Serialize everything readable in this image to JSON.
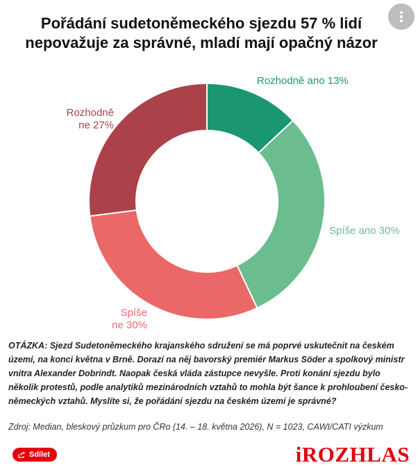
{
  "title": "Pořádání sudetoněmeckého sjezdu 57 % lidí nepovažuje za správné, mladí mají opačný názor",
  "menu_icon": "more-vertical-icon",
  "chart_data": {
    "type": "pie",
    "donut": true,
    "title": "Pořádání sudetoněmeckého sjezdu 57 % lidí nepovažuje za správné, mladí mají opačný názor",
    "unit": "%",
    "slices": [
      {
        "label_lines": [
          "Rozhodně ano 13%"
        ],
        "label": "Rozhodně ano",
        "value": 13,
        "color": "#1a9673"
      },
      {
        "label_lines": [
          "Spíše ano 30%"
        ],
        "label": "Spíše ano",
        "value": 30,
        "color": "#6bbd8f"
      },
      {
        "label_lines": [
          "Spíše",
          "ne 30%"
        ],
        "label": "Spíše ne",
        "value": 30,
        "color": "#eb6868"
      },
      {
        "label_lines": [
          "Rozhodně",
          "ne 27%"
        ],
        "label": "Rozhodně ne",
        "value": 27,
        "color": "#ab4249"
      }
    ]
  },
  "question": "OTÁZKA: Sjezd Sudetoněmeckého krajanského sdružení se má poprvé uskutečnit na českém území, na konci května v Brně. Dorazí na něj bavorský premiér Markus Söder a spolkový ministr vnitra Alexander Dobrindt. Naopak česká vláda zástupce nevyšle. Proti konání sjezdu bylo několik protestů, podle analytiků mezinárodních vztahů to mohla být šance k prohloubení česko-německých vztahů. Myslíte si, že pořádání sjezdu na českém území je správné?",
  "source": "Zdroj: Median, bleskový průzkum pro ČRo (14. – 18. května 2026), N = 1023, CAWI/CATI výzkum",
  "share": {
    "label": "Sdílet",
    "icon": "share-icon"
  },
  "logo": {
    "text": "iROZHLAS",
    "color": "#e3000f"
  }
}
